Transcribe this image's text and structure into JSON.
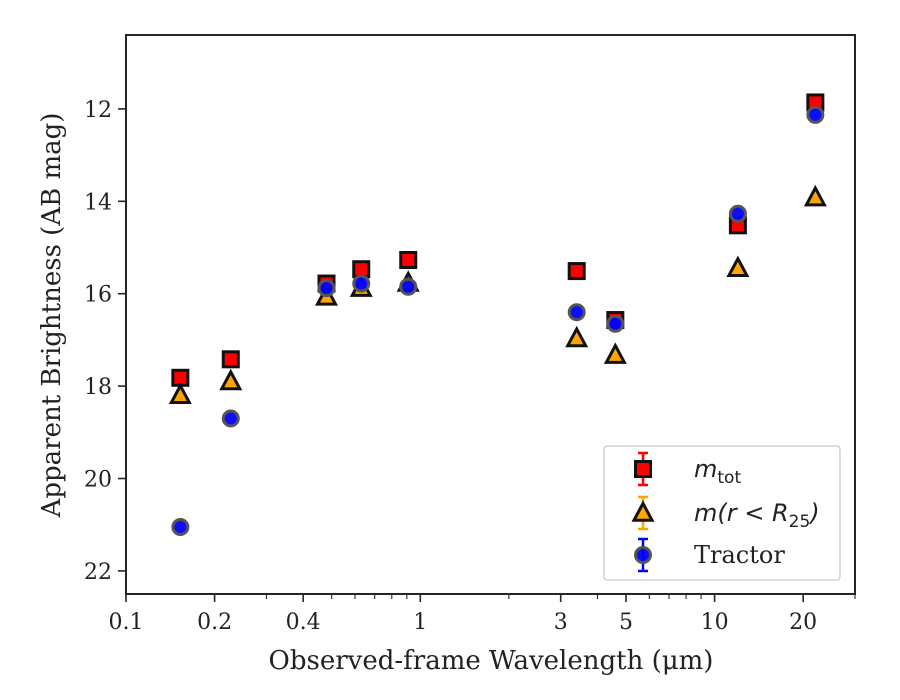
{
  "chart_data": {
    "type": "scatter",
    "xlabel": "Observed-frame Wavelength (μm)",
    "ylabel": "Apparent Brightness (AB mag)",
    "x_scale": "log",
    "y_inverted": true,
    "xlim": [
      0.1,
      30
    ],
    "ylim": [
      22.5,
      10.4
    ],
    "x_ticks": [
      0.1,
      0.2,
      0.4,
      1,
      3,
      5,
      10,
      20
    ],
    "x_tick_labels": [
      "0.1",
      "0.2",
      "0.4",
      "1",
      "3",
      "5",
      "10",
      "20"
    ],
    "y_ticks": [
      12,
      14,
      16,
      18,
      20,
      22
    ],
    "y_tick_labels": [
      "12",
      "14",
      "16",
      "18",
      "20",
      "22"
    ],
    "grid": false,
    "legend_position": "lower-right",
    "series": [
      {
        "name": "m_tot",
        "legend_label": {
          "base": "m",
          "sub": "tot"
        },
        "marker": "square",
        "color": "#ff0000",
        "errorbar_color": "#ff0000",
        "x": [
          0.153,
          0.227,
          0.48,
          0.63,
          0.91,
          3.4,
          4.6,
          12.0,
          22.0
        ],
        "y": [
          17.82,
          17.42,
          15.78,
          15.47,
          15.27,
          15.51,
          16.57,
          14.52,
          11.86
        ]
      },
      {
        "name": "m(r<R25)",
        "legend_label": {
          "base": "m(r < R",
          "sub": "25",
          "close": ")"
        },
        "marker": "triangle",
        "color": "#ffa500",
        "errorbar_color": "#ffa500",
        "x": [
          0.153,
          0.227,
          0.48,
          0.63,
          0.91,
          3.4,
          4.6,
          12.0,
          22.0
        ],
        "y": [
          18.2,
          17.9,
          16.07,
          15.88,
          15.77,
          16.97,
          17.33,
          15.45,
          13.92
        ]
      },
      {
        "name": "Tractor",
        "legend_label": {
          "base": "Tractor"
        },
        "marker": "circle",
        "color": "#0000ff",
        "errorbar_color": "#0000ff",
        "x": [
          0.153,
          0.227,
          0.48,
          0.63,
          0.91,
          3.4,
          4.6,
          12.0,
          22.0
        ],
        "y": [
          21.05,
          18.7,
          15.88,
          15.78,
          15.85,
          16.4,
          16.65,
          14.27,
          12.13
        ]
      }
    ]
  }
}
